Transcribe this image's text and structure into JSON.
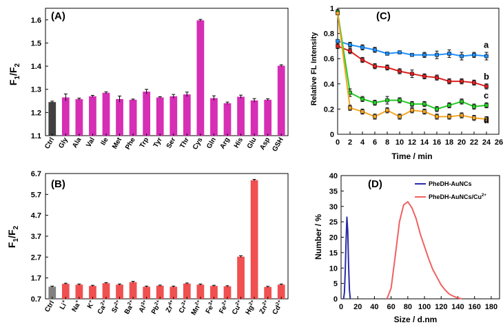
{
  "chart_data": [
    {
      "panel": "A",
      "type": "bar",
      "panel_label": "(A)",
      "ylabel_main": "F",
      "ylabel_sub1": "1",
      "ylabel_sep": "/F",
      "ylabel_sub2": "2",
      "ylim": [
        1.1,
        1.65
      ],
      "yticks": [
        "1.1",
        "1.2",
        "1.3",
        "1.4",
        "1.5",
        "1.6"
      ],
      "categories": [
        "Ctrl",
        "Gly",
        "Ala",
        "Val",
        "Ile",
        "Met",
        "Phe",
        "Trp",
        "Tyr",
        "Ser",
        "Thr",
        "Cys",
        "Gln",
        "Arg",
        "His",
        "Glu",
        "Asp",
        "GSH"
      ],
      "values": [
        1.245,
        1.265,
        1.258,
        1.27,
        1.285,
        1.258,
        1.255,
        1.29,
        1.265,
        1.27,
        1.278,
        1.598,
        1.262,
        1.24,
        1.268,
        1.252,
        1.255,
        1.402
      ],
      "errors": [
        0.004,
        0.015,
        0.004,
        0.004,
        0.004,
        0.013,
        0.003,
        0.01,
        0.003,
        0.008,
        0.01,
        0.004,
        0.01,
        0.005,
        0.007,
        0.008,
        0.004,
        0.004
      ],
      "colors": [
        "#404040",
        "#d62eb5"
      ]
    },
    {
      "panel": "B",
      "type": "bar",
      "panel_label": "(B)",
      "ylabel_main": "F",
      "ylabel_sub1": "1",
      "ylabel_sep": "/F",
      "ylabel_sub2": "2",
      "ylim": [
        0.7,
        6.7
      ],
      "yticks": [
        "0.7",
        "1.7",
        "2.7",
        "3.7",
        "4.7",
        "5.7",
        "6.7"
      ],
      "categories": [
        {
          "base": "Ctrl",
          "sup": ""
        },
        {
          "base": "Li",
          "sup": "+"
        },
        {
          "base": "Na",
          "sup": "+"
        },
        {
          "base": "K",
          "sup": "+"
        },
        {
          "base": "Ca",
          "sup": "2+"
        },
        {
          "base": "Sr",
          "sup": "2+"
        },
        {
          "base": "Ba",
          "sup": "2+"
        },
        {
          "base": "Al",
          "sup": "3+"
        },
        {
          "base": "Pb",
          "sup": "2+"
        },
        {
          "base": "Zr",
          "sup": "4+"
        },
        {
          "base": "Cr",
          "sup": "3+"
        },
        {
          "base": "Mn",
          "sup": "2+"
        },
        {
          "base": "Fe",
          "sup": "3+"
        },
        {
          "base": "Fe",
          "sup": "2+"
        },
        {
          "base": "Cu",
          "sup": "2+"
        },
        {
          "base": "Hg",
          "sup": "2+"
        },
        {
          "base": "Zn",
          "sup": "2+"
        },
        {
          "base": "Cd",
          "sup": "2+"
        }
      ],
      "values": [
        1.28,
        1.42,
        1.38,
        1.32,
        1.45,
        1.38,
        1.5,
        1.28,
        1.33,
        1.28,
        1.43,
        1.38,
        1.32,
        1.3,
        2.72,
        6.38,
        1.27,
        1.38
      ],
      "errors": [
        0.03,
        0.03,
        0.03,
        0.03,
        0.03,
        0.03,
        0.04,
        0.03,
        0.03,
        0.03,
        0.03,
        0.03,
        0.03,
        0.03,
        0.04,
        0.04,
        0.03,
        0.03
      ],
      "colors": [
        "#808080",
        "#f05050"
      ]
    },
    {
      "panel": "C",
      "type": "line",
      "panel_label": "(C)",
      "xlabel": "Time / min",
      "ylabel": "Relative FL Intensity",
      "xlim": [
        0,
        26
      ],
      "ylim": [
        0,
        1
      ],
      "xticks": [
        "0",
        "2",
        "4",
        "6",
        "8",
        "10",
        "12",
        "14",
        "16",
        "18",
        "20",
        "22",
        "24",
        "26"
      ],
      "yticks": [
        "0",
        "0.2",
        "0.4",
        "0.6",
        "0.8",
        "1"
      ],
      "x": [
        0,
        2,
        4,
        6,
        8,
        10,
        12,
        14,
        16,
        18,
        20,
        22,
        24
      ],
      "series": [
        {
          "name": "a",
          "color": "#1e90ff",
          "values": [
            0.74,
            0.71,
            0.69,
            0.67,
            0.64,
            0.65,
            0.63,
            0.63,
            0.63,
            0.64,
            0.62,
            0.63,
            0.62
          ],
          "errors": [
            0.01,
            0.02,
            0.02,
            0.02,
            0.01,
            0.01,
            0.01,
            0.02,
            0.03,
            0.03,
            0.03,
            0.02,
            0.03
          ]
        },
        {
          "name": "b",
          "color": "#e02020",
          "values": [
            0.7,
            0.66,
            0.59,
            0.54,
            0.53,
            0.5,
            0.48,
            0.46,
            0.45,
            0.42,
            0.42,
            0.41,
            0.38
          ],
          "errors": [
            0.02,
            0.02,
            0.02,
            0.02,
            0.02,
            0.02,
            0.03,
            0.02,
            0.02,
            0.02,
            0.02,
            0.02,
            0.02
          ]
        },
        {
          "name": "c",
          "color": "#22cc22",
          "values": [
            0.97,
            0.33,
            0.28,
            0.25,
            0.27,
            0.27,
            0.24,
            0.24,
            0.2,
            0.23,
            0.26,
            0.22,
            0.23
          ],
          "errors": [
            0.02,
            0.03,
            0.02,
            0.02,
            0.03,
            0.02,
            0.02,
            0.02,
            0.02,
            0.02,
            0.02,
            0.02,
            0.02
          ]
        },
        {
          "name": "d",
          "color": "#f5a623",
          "values": [
            0.96,
            0.21,
            0.18,
            0.14,
            0.19,
            0.14,
            0.19,
            0.18,
            0.14,
            0.14,
            0.15,
            0.13,
            0.12
          ],
          "errors": [
            0.01,
            0.02,
            0.02,
            0.02,
            0.02,
            0.02,
            0.02,
            0.02,
            0.02,
            0.02,
            0.02,
            0.02,
            0.02
          ]
        }
      ]
    },
    {
      "panel": "D",
      "type": "line",
      "panel_label": "(D)",
      "xlabel": "Size / d.nm",
      "ylabel": "Number / %",
      "xlim": [
        0,
        190
      ],
      "ylim": [
        0,
        40
      ],
      "xticks": [
        "0",
        "20",
        "40",
        "60",
        "80",
        "100",
        "120",
        "140",
        "160",
        "180"
      ],
      "yticks": [
        "0",
        "5",
        "10",
        "15",
        "20",
        "25",
        "30",
        "35",
        "40"
      ],
      "legend_position": "top-right",
      "series": [
        {
          "name": "PheDH-AuNCs",
          "name_sup": "",
          "color": "#2a2aa8",
          "x": [
            3,
            4,
            5,
            6,
            7,
            8,
            9,
            10,
            11
          ],
          "values": [
            0,
            2,
            9,
            19,
            26.5,
            22,
            11,
            3,
            0
          ]
        },
        {
          "name": "PheDH-AuNCs/Cu",
          "name_sup": "2+",
          "color": "#f06060",
          "x": [
            55,
            60,
            65,
            70,
            75,
            80,
            85,
            90,
            95,
            100,
            105,
            110,
            115,
            120,
            125,
            130,
            135,
            140,
            145
          ],
          "values": [
            0,
            3.5,
            14,
            25,
            30.5,
            31.5,
            29.5,
            26,
            21,
            17,
            13,
            9.5,
            7,
            4.5,
            2.8,
            1.5,
            0.8,
            0.3,
            0
          ]
        }
      ]
    }
  ]
}
